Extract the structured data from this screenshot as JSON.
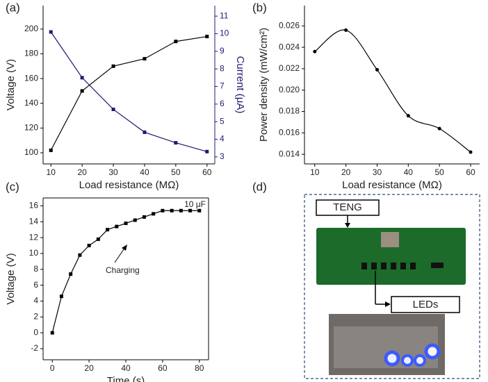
{
  "chart_data": [
    {
      "type": "line",
      "panel_label": "(a)",
      "xlabel": "Load resistance (MΩ)",
      "ylabel": "Voltage (V)",
      "y2label": "Current (μA)",
      "x": [
        10,
        20,
        30,
        40,
        50,
        60
      ],
      "xlim": [
        7.5,
        62.5
      ],
      "xticks": [
        10,
        20,
        30,
        40,
        50,
        60
      ],
      "ylim": [
        91,
        219
      ],
      "yticks": [
        100,
        120,
        140,
        160,
        180,
        200
      ],
      "y2lim": [
        2.6,
        11.6
      ],
      "y2ticks": [
        3,
        4,
        5,
        6,
        7,
        8,
        9,
        10,
        11
      ],
      "y2color": "#1b1b72",
      "series": [
        {
          "color": "#000000",
          "marker": "square",
          "values": [
            102,
            150,
            170,
            176,
            190,
            194
          ]
        },
        {
          "color": "#1b1b72",
          "marker": "square",
          "axis": "y2",
          "values": [
            10.1,
            7.5,
            5.7,
            4.4,
            3.8,
            3.3
          ]
        }
      ]
    },
    {
      "type": "line",
      "panel_label": "(b)",
      "xlabel": "Load resistance (MΩ)",
      "ylabel": "Power density (mW/cm²)",
      "smooth": true,
      "x": [
        10,
        20,
        30,
        40,
        50,
        60
      ],
      "xlim": [
        6.7,
        62.9
      ],
      "xticks": [
        10,
        20,
        30,
        40,
        50,
        60
      ],
      "ylim": [
        0.0131,
        0.0279
      ],
      "yticks": [
        {
          "value": 0.014,
          "label": "0.014"
        },
        {
          "value": 0.016,
          "label": "0.016"
        },
        {
          "value": 0.018,
          "label": "0.018"
        },
        {
          "value": 0.02,
          "label": "0.020"
        },
        {
          "value": 0.022,
          "label": "0.022"
        },
        {
          "value": 0.024,
          "label": "0.024"
        },
        {
          "value": 0.026,
          "label": "0.026"
        }
      ],
      "series": [
        {
          "color": "#000000",
          "marker": "circle",
          "values": [
            0.0236,
            0.0256,
            0.0219,
            0.0176,
            0.0164,
            0.0142
          ]
        }
      ]
    },
    {
      "type": "line",
      "panel_label": "(c)",
      "xlabel": "Time (s)",
      "ylabel": "Voltage (V)",
      "frame": true,
      "annotations": [
        "Charging",
        "10 μF"
      ],
      "x": [
        0,
        5,
        10,
        15,
        20,
        25,
        30,
        35,
        40,
        45,
        50,
        55,
        60,
        65,
        70,
        75,
        80
      ],
      "xlim": [
        -5,
        85
      ],
      "xticks": [
        0,
        20,
        40,
        60,
        80
      ],
      "ylim": [
        -3.4,
        17
      ],
      "yticks": [
        -2,
        0,
        2,
        4,
        6,
        8,
        10,
        12,
        14,
        16
      ],
      "series": [
        {
          "color": "#000000",
          "marker": "square",
          "values": [
            0,
            4.6,
            7.4,
            9.8,
            11,
            11.8,
            13,
            13.4,
            13.8,
            14.2,
            14.6,
            15,
            15.4,
            15.4,
            15.4,
            15.4,
            15.4
          ]
        }
      ]
    }
  ],
  "diagram": {
    "panel_label": "(d)",
    "labels": [
      "TENG",
      "LEDs"
    ]
  }
}
